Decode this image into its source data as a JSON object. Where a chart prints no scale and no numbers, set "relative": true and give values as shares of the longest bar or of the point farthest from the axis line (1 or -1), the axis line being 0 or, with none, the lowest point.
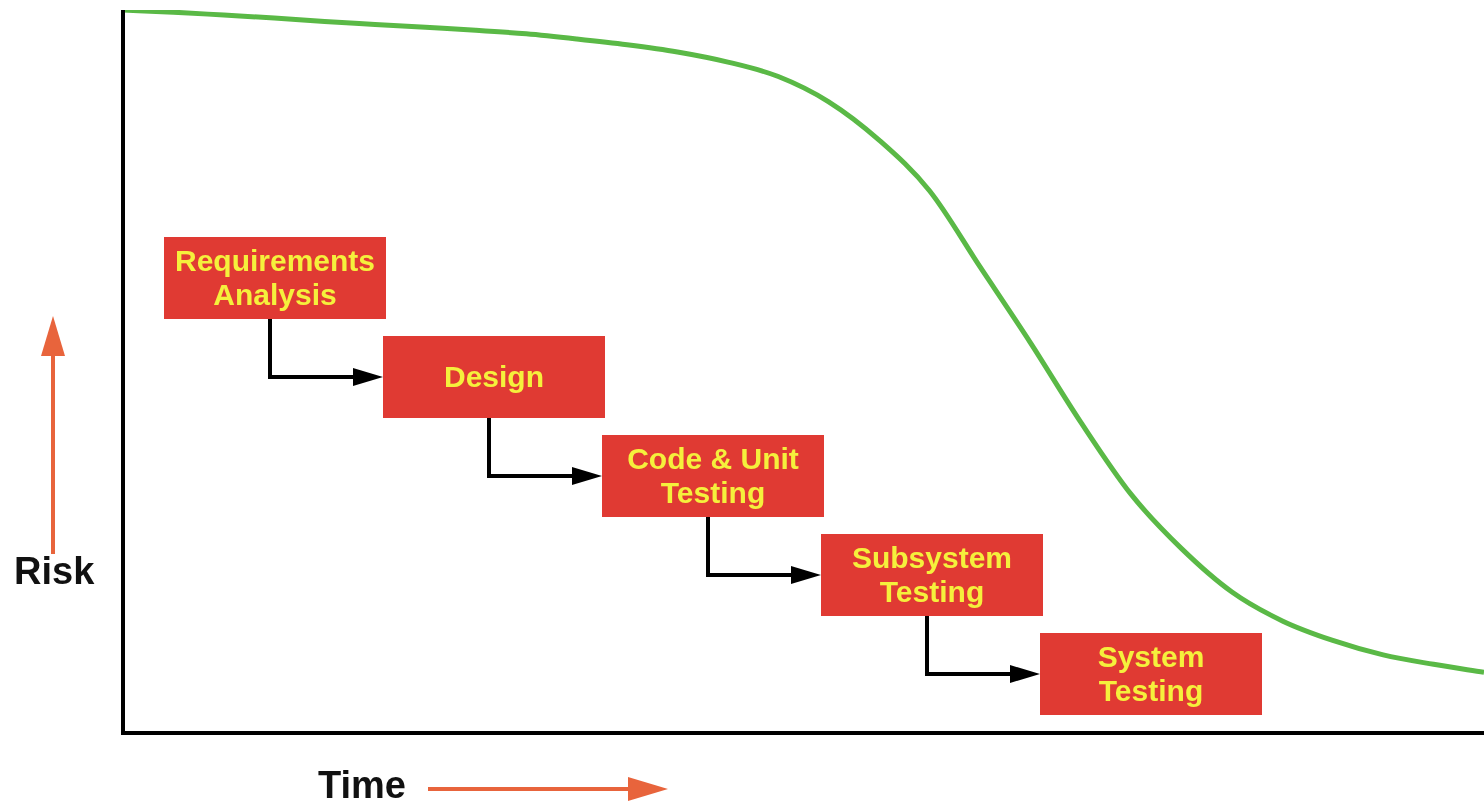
{
  "chart_data": {
    "type": "line",
    "relative": true,
    "xlabel": "Time",
    "ylabel": "Risk",
    "categories": [
      null,
      null,
      null,
      null,
      null,
      null,
      null,
      null,
      null,
      null,
      null,
      null,
      null,
      null,
      null,
      null,
      null,
      null,
      null,
      null,
      null,
      null,
      null,
      null,
      null,
      null,
      null,
      null
    ],
    "series": [
      {
        "color": "#5ab946",
        "values": [
          1.0,
          0.997,
          0.993,
          0.989,
          0.984,
          0.98,
          0.976,
          0.972,
          0.967,
          0.96,
          0.952,
          0.942,
          0.928,
          0.908,
          0.873,
          0.82,
          0.75,
          0.645,
          0.54,
          0.43,
          0.33,
          0.255,
          0.195,
          0.155,
          0.128,
          0.108,
          0.095,
          0.084
        ]
      }
    ],
    "annotations": [
      "Requirements Analysis",
      "Design",
      "Code & Unit Testing",
      "Subsystem Testing",
      "System Testing"
    ],
    "legend": false
  }
}
